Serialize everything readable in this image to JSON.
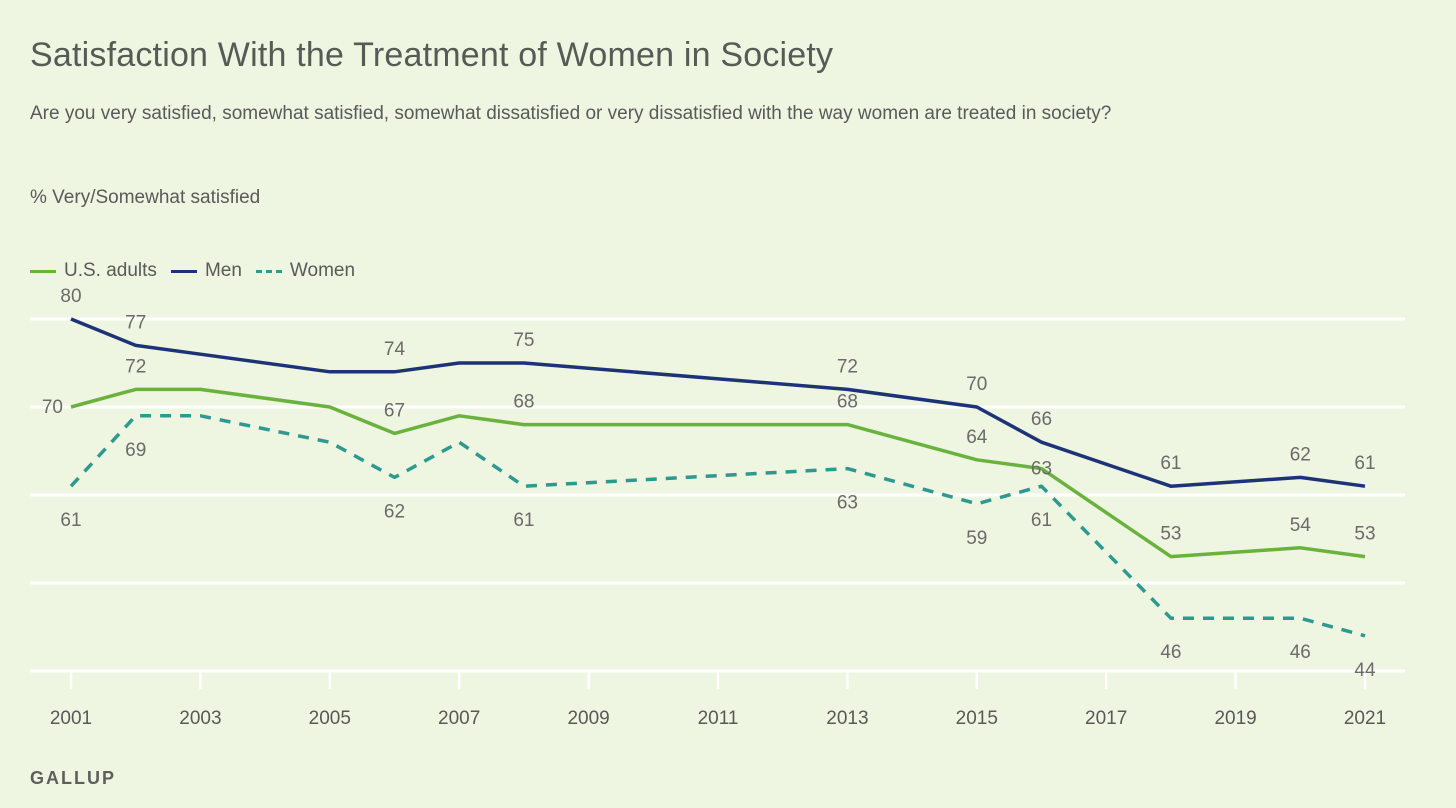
{
  "chart_data": {
    "type": "line",
    "title": "Satisfaction With the Treatment of Women in Society",
    "subtitle": "Are you very satisfied, somewhat satisfied, somewhat dissatisfied or very dissatisfied with the way women are treated in society?",
    "ylabel": "% Very/Somewhat satisfied",
    "xlabel": "",
    "x_ticks": [
      2001,
      2003,
      2005,
      2007,
      2009,
      2011,
      2013,
      2015,
      2017,
      2019,
      2021
    ],
    "xlim": [
      2001,
      2021
    ],
    "ylim": [
      40,
      80
    ],
    "grid": true,
    "legend_position": "top-left",
    "series": [
      {
        "name": "U.S. adults",
        "color": "#6ab23e",
        "style": "solid",
        "x": [
          2001,
          2002,
          2003,
          2005,
          2006,
          2007,
          2008,
          2013,
          2015,
          2016,
          2018,
          2020,
          2021
        ],
        "y": [
          70,
          72,
          72,
          70,
          67,
          69,
          68,
          68,
          64,
          63,
          53,
          54,
          53
        ],
        "labeled": [
          {
            "x": 2001,
            "text": "70",
            "pos": "left"
          },
          {
            "x": 2002,
            "text": "72",
            "pos": "above"
          },
          {
            "x": 2006,
            "text": "67",
            "pos": "above"
          },
          {
            "x": 2008,
            "text": "68",
            "pos": "above"
          },
          {
            "x": 2013,
            "text": "68",
            "pos": "above"
          },
          {
            "x": 2015,
            "text": "64",
            "pos": "above"
          },
          {
            "x": 2016,
            "text": "63",
            "pos": "on"
          },
          {
            "x": 2018,
            "text": "53",
            "pos": "above"
          },
          {
            "x": 2020,
            "text": "54",
            "pos": "above"
          },
          {
            "x": 2021,
            "text": "53",
            "pos": "above"
          }
        ]
      },
      {
        "name": "Men",
        "color": "#1c3378",
        "style": "solid",
        "x": [
          2001,
          2002,
          2003,
          2005,
          2006,
          2007,
          2008,
          2013,
          2015,
          2016,
          2018,
          2020,
          2021
        ],
        "y": [
          80,
          77,
          76,
          74,
          74,
          75,
          75,
          72,
          70,
          66,
          61,
          62,
          61
        ],
        "labeled": [
          {
            "x": 2001,
            "text": "80",
            "pos": "above"
          },
          {
            "x": 2002,
            "text": "77",
            "pos": "above"
          },
          {
            "x": 2006,
            "text": "74",
            "pos": "above"
          },
          {
            "x": 2008,
            "text": "75",
            "pos": "above"
          },
          {
            "x": 2013,
            "text": "72",
            "pos": "above"
          },
          {
            "x": 2015,
            "text": "70",
            "pos": "above"
          },
          {
            "x": 2016,
            "text": "66",
            "pos": "above"
          },
          {
            "x": 2018,
            "text": "61",
            "pos": "above"
          },
          {
            "x": 2020,
            "text": "62",
            "pos": "above"
          },
          {
            "x": 2021,
            "text": "61",
            "pos": "above"
          }
        ]
      },
      {
        "name": "Women",
        "color": "#2e9990",
        "style": "dashed",
        "x": [
          2001,
          2002,
          2003,
          2005,
          2006,
          2007,
          2008,
          2013,
          2015,
          2016,
          2018,
          2020,
          2021
        ],
        "y": [
          61,
          69,
          69,
          66,
          62,
          66,
          61,
          63,
          59,
          61,
          46,
          46,
          44
        ],
        "labeled": [
          {
            "x": 2001,
            "text": "61",
            "pos": "below"
          },
          {
            "x": 2002,
            "text": "69",
            "pos": "below"
          },
          {
            "x": 2006,
            "text": "62",
            "pos": "below"
          },
          {
            "x": 2008,
            "text": "61",
            "pos": "below"
          },
          {
            "x": 2013,
            "text": "63",
            "pos": "below"
          },
          {
            "x": 2015,
            "text": "59",
            "pos": "below"
          },
          {
            "x": 2016,
            "text": "61",
            "pos": "below"
          },
          {
            "x": 2018,
            "text": "46",
            "pos": "below"
          },
          {
            "x": 2020,
            "text": "46",
            "pos": "below"
          },
          {
            "x": 2021,
            "text": "44",
            "pos": "below"
          }
        ]
      }
    ],
    "source": "GALLUP"
  }
}
